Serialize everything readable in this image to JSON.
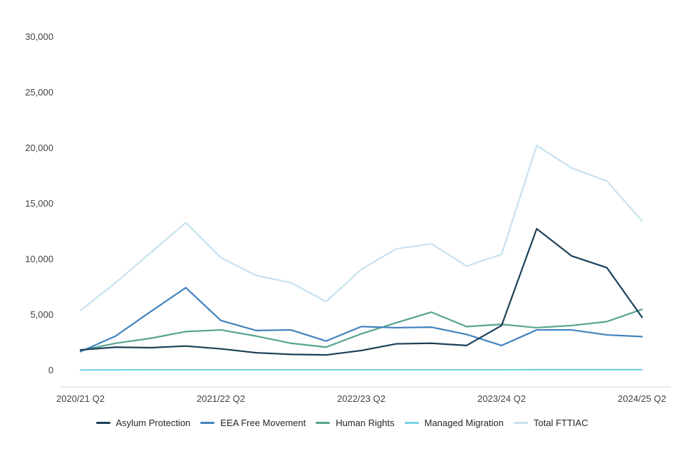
{
  "chart": {
    "background_color": "#ffffff",
    "axis_line_color": "#d4d7d9",
    "tick_text_color": "#414347",
    "legend_text_color": "#242628"
  },
  "chart_data": {
    "type": "line",
    "title": "",
    "xlabel": "",
    "ylabel": "",
    "grid": false,
    "legend_position": "bottom",
    "ylim": [
      0,
      30000
    ],
    "y_ticks": [
      {
        "value": 0,
        "label": "0"
      },
      {
        "value": 5000,
        "label": "5,000"
      },
      {
        "value": 10000,
        "label": "10,000"
      },
      {
        "value": 15000,
        "label": "15,000"
      },
      {
        "value": 20000,
        "label": "20,000"
      },
      {
        "value": 25000,
        "label": "25,000"
      },
      {
        "value": 30000,
        "label": "30,000"
      }
    ],
    "n_points": 17,
    "x_tick_labels": [
      {
        "index": 0,
        "label": "2020/21 Q2"
      },
      {
        "index": 4,
        "label": "2021/22 Q2"
      },
      {
        "index": 8,
        "label": "2022/23 Q2"
      },
      {
        "index": 12,
        "label": "2023/24 Q2"
      },
      {
        "index": 16,
        "label": "2024/25 Q2"
      }
    ],
    "series": [
      {
        "name": "Asylum Protection",
        "color": "#1d4057",
        "values": [
          1850,
          2100,
          2050,
          2200,
          1950,
          1600,
          1450,
          1400,
          1800,
          2400,
          2450,
          2250,
          4050,
          12750,
          10300,
          9250,
          4800
        ]
      },
      {
        "name": "EEA Free Movement",
        "color": "#4383bf",
        "values": [
          1700,
          3100,
          5300,
          7450,
          4500,
          3600,
          3650,
          2650,
          3950,
          3850,
          3900,
          3250,
          2250,
          3650,
          3650,
          3200,
          3050
        ]
      },
      {
        "name": "Human Rights",
        "color": "#56a491",
        "values": [
          1800,
          2450,
          2900,
          3500,
          3650,
          3100,
          2450,
          2100,
          3300,
          4300,
          5250,
          3950,
          4150,
          3850,
          4050,
          4400,
          5500
        ]
      },
      {
        "name": "Managed Migration",
        "color": "#77d1e4",
        "values": [
          50,
          55,
          60,
          60,
          60,
          60,
          60,
          60,
          60,
          60,
          60,
          60,
          60,
          70,
          70,
          70,
          70
        ]
      },
      {
        "name": "Total FTTIAC",
        "color": "#c8e1ef",
        "values": [
          5400,
          7900,
          10600,
          13300,
          10150,
          8550,
          7900,
          6200,
          9100,
          10950,
          11400,
          9400,
          10450,
          20250,
          18200,
          17050,
          13450
        ]
      }
    ]
  }
}
